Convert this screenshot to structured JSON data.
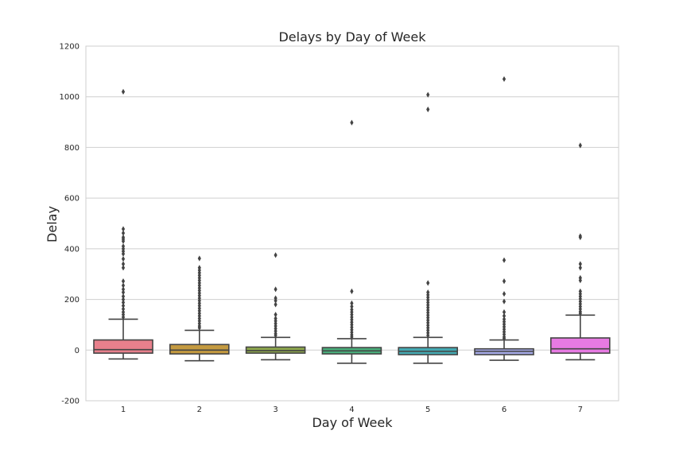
{
  "chart_data": {
    "type": "box",
    "title": "Delays by Day of Week",
    "xlabel": "Day of Week",
    "ylabel": "Delay",
    "ylim": [
      -200,
      1200
    ],
    "yticks": [
      -200,
      0,
      200,
      400,
      600,
      800,
      1000,
      1200
    ],
    "categories": [
      "1",
      "2",
      "3",
      "4",
      "5",
      "6",
      "7"
    ],
    "grid": "horizontal",
    "colors": [
      "#e8808c",
      "#c49a40",
      "#8ea84c",
      "#48ad7a",
      "#44a9b2",
      "#a4a8e6",
      "#e67ae2"
    ],
    "boxes": [
      {
        "category": "1",
        "whisker_low": -35,
        "q1": -12,
        "median": 2,
        "q3": 40,
        "whisker_high": 122,
        "outliers": [
          1020,
          478,
          462,
          445,
          438,
          430,
          410,
          400,
          390,
          380,
          360,
          340,
          325,
          272,
          255,
          240,
          228,
          212,
          200,
          188,
          175,
          162,
          150,
          140,
          130
        ]
      },
      {
        "category": "2",
        "whisker_low": -42,
        "q1": -15,
        "median": 0,
        "q3": 22,
        "whisker_high": 78,
        "outliers": [
          362,
          325,
          315,
          305,
          295,
          285,
          275,
          265,
          255,
          245,
          235,
          225,
          215,
          205,
          195,
          185,
          175,
          165,
          155,
          145,
          135,
          125,
          115,
          105,
          95,
          88
        ]
      },
      {
        "category": "3",
        "whisker_low": -38,
        "q1": -12,
        "median": -2,
        "q3": 12,
        "whisker_high": 50,
        "outliers": [
          375,
          240,
          205,
          195,
          180,
          140,
          125,
          115,
          105,
          95,
          85,
          75,
          65,
          58
        ]
      },
      {
        "category": "4",
        "whisker_low": -52,
        "q1": -15,
        "median": -3,
        "q3": 10,
        "whisker_high": 45,
        "outliers": [
          898,
          232,
          185,
          172,
          160,
          150,
          140,
          130,
          120,
          110,
          100,
          90,
          80,
          70,
          60,
          52
        ]
      },
      {
        "category": "5",
        "whisker_low": -52,
        "q1": -18,
        "median": -5,
        "q3": 10,
        "whisker_high": 50,
        "outliers": [
          1008,
          950,
          265,
          228,
          218,
          208,
          198,
          188,
          178,
          168,
          158,
          148,
          138,
          128,
          118,
          108,
          98,
          88,
          78,
          68,
          58
        ]
      },
      {
        "category": "6",
        "whisker_low": -40,
        "q1": -18,
        "median": -5,
        "q3": 5,
        "whisker_high": 40,
        "outliers": [
          1070,
          355,
          272,
          222,
          192,
          150,
          135,
          122,
          112,
          102,
          92,
          82,
          72,
          62,
          52,
          46
        ]
      },
      {
        "category": "7",
        "whisker_low": -38,
        "q1": -12,
        "median": 5,
        "q3": 48,
        "whisker_high": 138,
        "outliers": [
          808,
          450,
          445,
          340,
          325,
          285,
          275,
          232,
          222,
          212,
          202,
          192,
          182,
          172,
          162,
          152,
          145
        ]
      }
    ]
  }
}
